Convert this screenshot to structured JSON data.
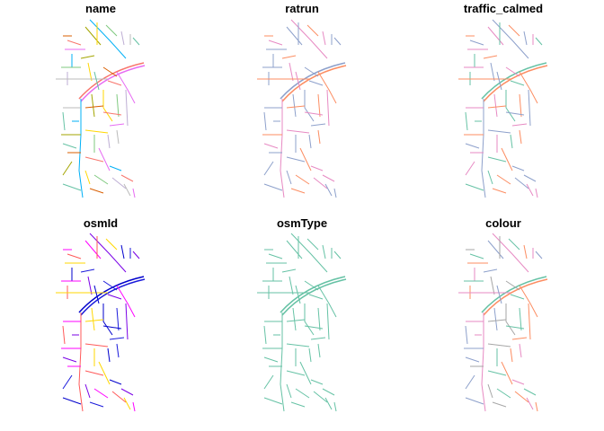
{
  "panels": [
    {
      "title": "name",
      "palette": [
        "#f8766d",
        "#e76bf3",
        "#00b0f6",
        "#a3a500",
        "#ffd700",
        "#7fc97f",
        "#beaed4",
        "#bbbbbb",
        "#66c2a5",
        "#d95f02"
      ]
    },
    {
      "title": "ratrun",
      "palette": [
        "#8da0cb",
        "#fc8d62",
        "#e78ac3",
        "#8da0cb"
      ]
    },
    {
      "title": "traffic_calmed",
      "palette": [
        "#66c2a5",
        "#fc8d62",
        "#8da0cb",
        "#e78ac3"
      ]
    },
    {
      "title": "osmId",
      "palette": [
        "#0000cc",
        "#1a1adb",
        "#7a00e6",
        "#ff00ff",
        "#ff5a5a",
        "#ffd700"
      ]
    },
    {
      "title": "osmType",
      "palette": [
        "#66c2a5"
      ]
    },
    {
      "title": "colour",
      "palette": [
        "#66c2a5",
        "#fc8d62",
        "#e78ac3",
        "#8da0cb",
        "#a6a6a6"
      ]
    }
  ]
}
